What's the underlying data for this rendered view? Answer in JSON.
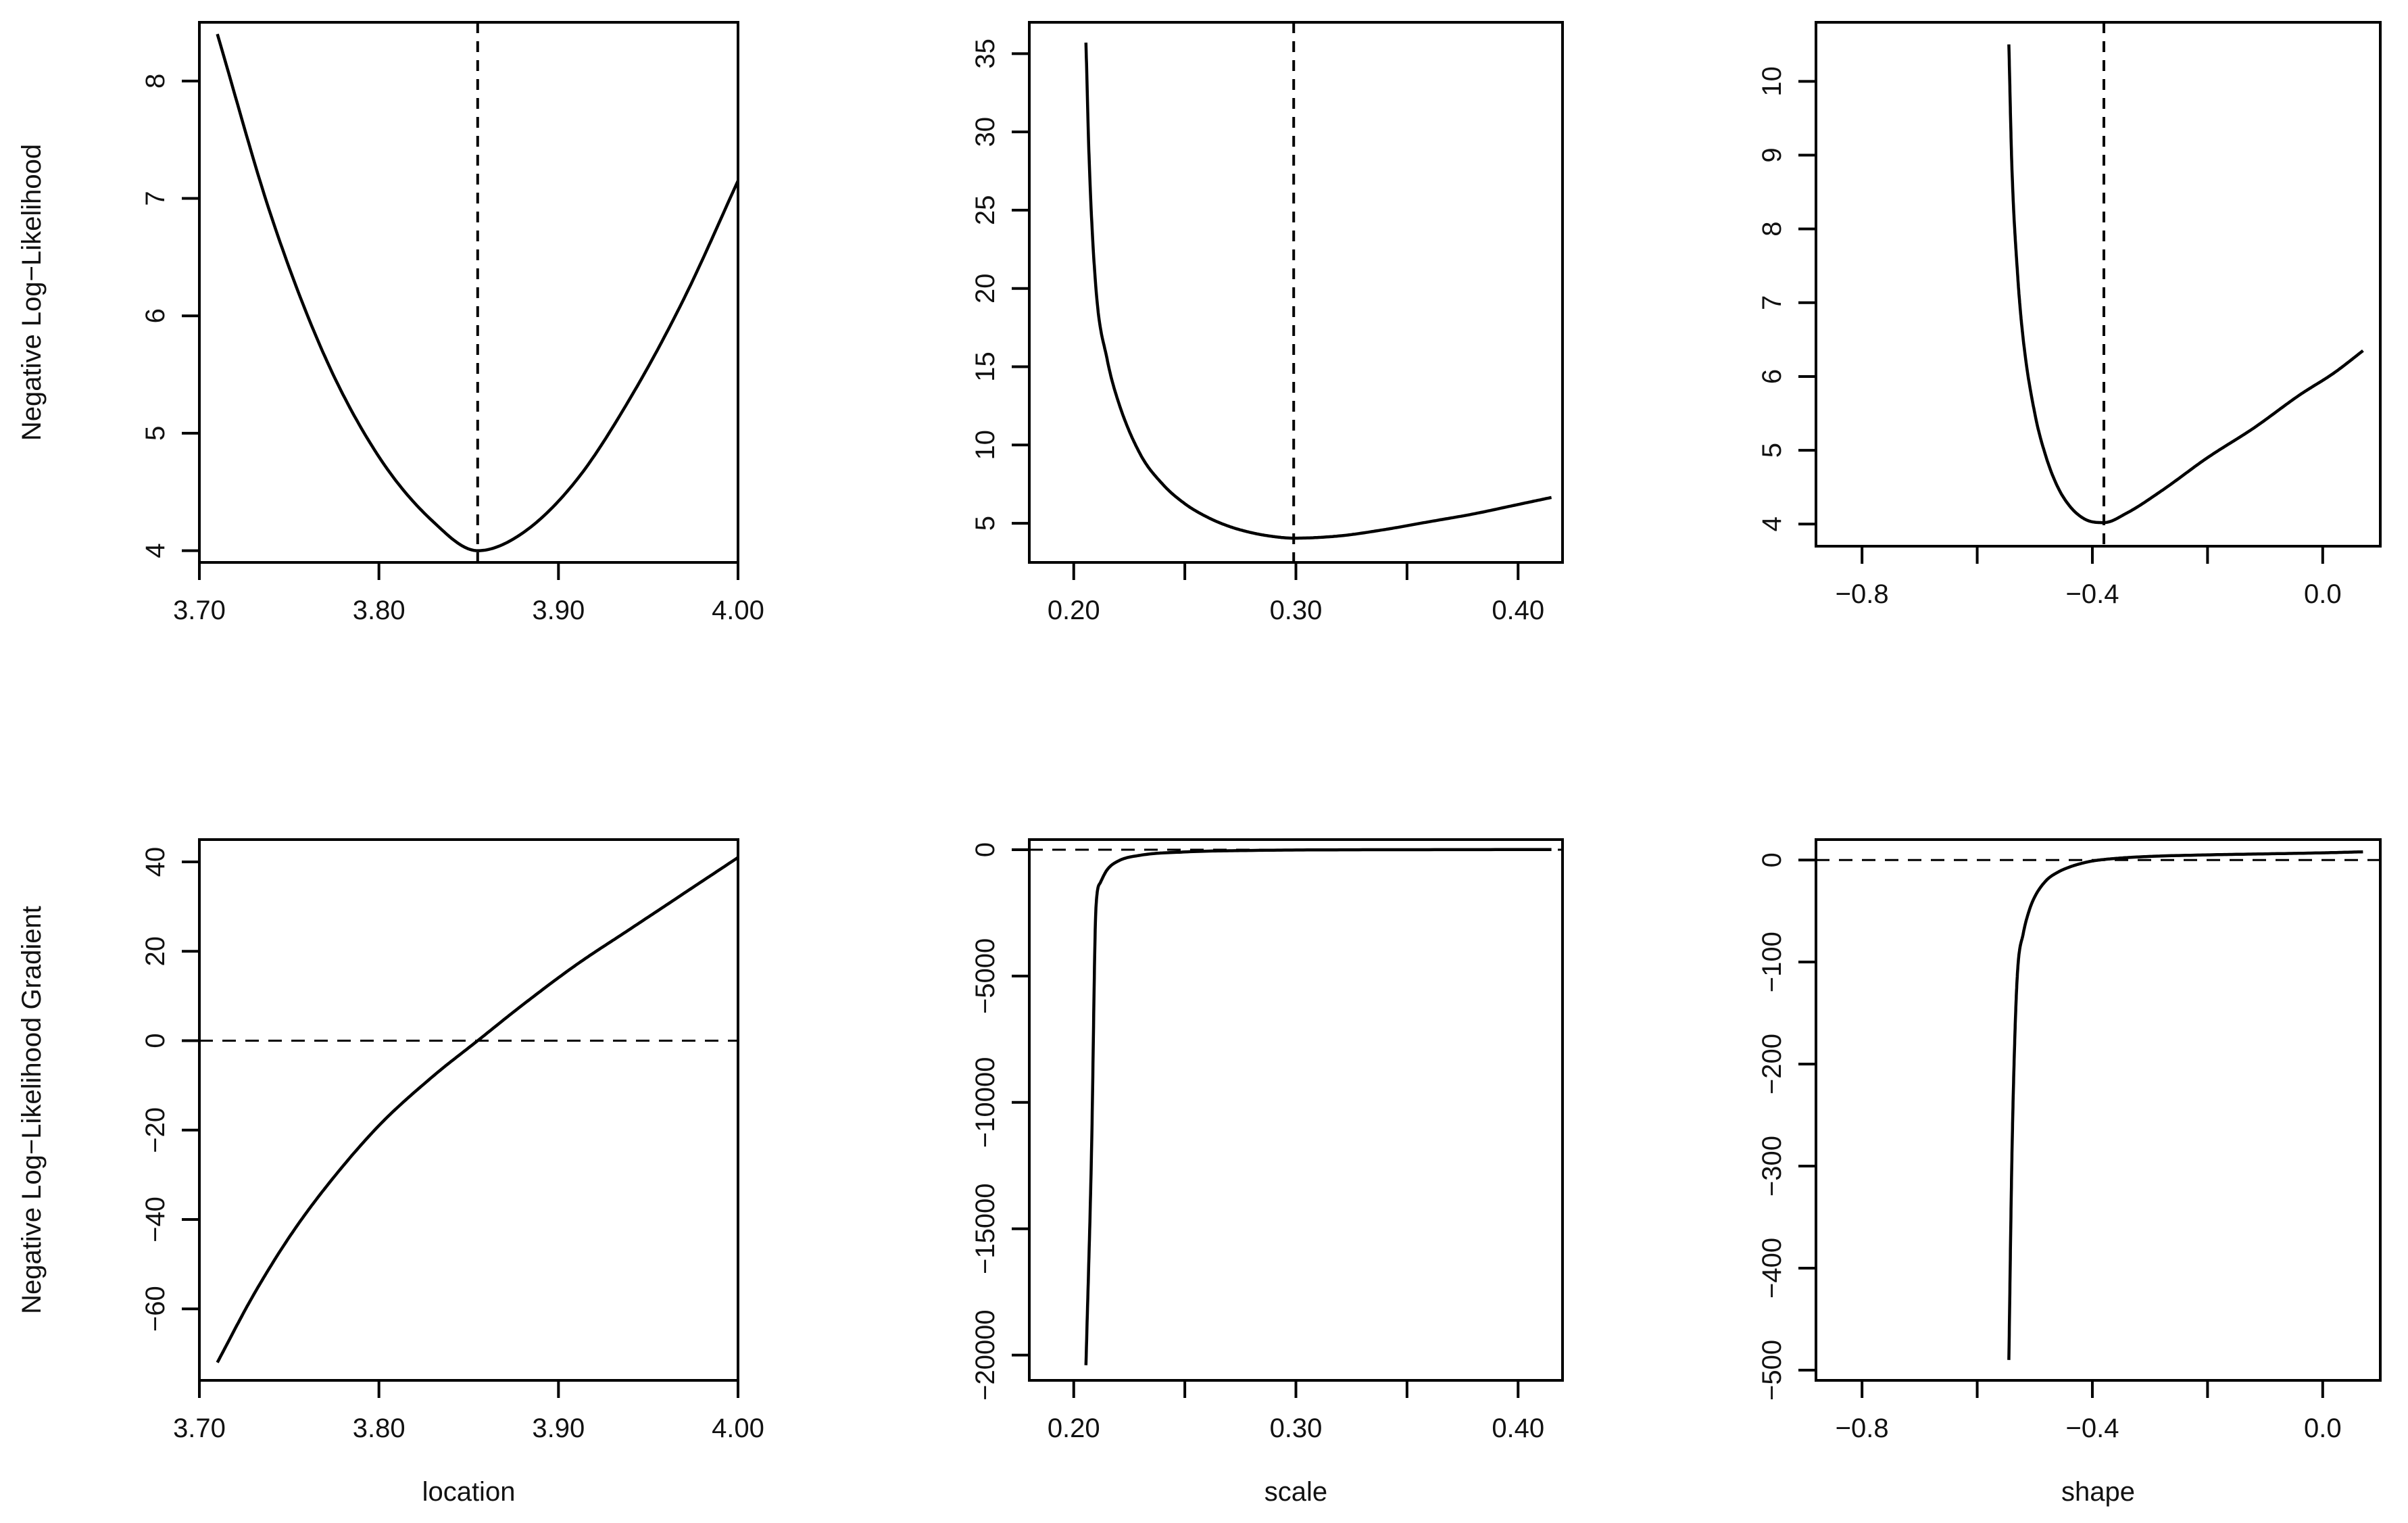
{
  "chart_data": [
    {
      "type": "line",
      "xlabel": "",
      "ylabel": "Negative Log−Likelihood",
      "xlim": [
        3.7,
        4.0
      ],
      "ylim": [
        3.9,
        8.5
      ],
      "xticks": [
        3.7,
        3.8,
        3.9,
        4.0
      ],
      "xtick_labels": [
        "3.70",
        "3.80",
        "3.90",
        "4.00"
      ],
      "yticks": [
        4,
        5,
        6,
        7,
        8
      ],
      "ytick_labels": [
        "4",
        "5",
        "6",
        "7",
        "8"
      ],
      "vline": 3.855,
      "hline": null,
      "series": [
        {
          "x": [
            3.71,
            3.74,
            3.77,
            3.8,
            3.83,
            3.855,
            3.88,
            3.91,
            3.94,
            3.97,
            4.0
          ],
          "y": [
            8.4,
            6.85,
            5.65,
            4.8,
            4.25,
            4.0,
            4.15,
            4.6,
            5.3,
            6.15,
            7.15
          ]
        }
      ]
    },
    {
      "type": "line",
      "xlabel": "",
      "ylabel": "",
      "xlim": [
        0.18,
        0.42
      ],
      "ylim": [
        2.5,
        37
      ],
      "xticks": [
        0.2,
        0.25,
        0.3,
        0.35,
        0.4
      ],
      "xtick_labels": [
        "0.20",
        "",
        "0.30",
        "",
        "0.40"
      ],
      "yticks": [
        5,
        10,
        15,
        20,
        25,
        30,
        35
      ],
      "ytick_labels": [
        "5",
        "10",
        "15",
        "20",
        "25",
        "30",
        "35"
      ],
      "vline": 0.299,
      "hline": null,
      "series": [
        {
          "x": [
            0.2055,
            0.207,
            0.21,
            0.215,
            0.22,
            0.23,
            0.24,
            0.25,
            0.26,
            0.27,
            0.28,
            0.29,
            0.299,
            0.32,
            0.34,
            0.36,
            0.38,
            0.4,
            0.415
          ],
          "y": [
            35.7,
            28.0,
            20.0,
            15.5,
            12.8,
            9.4,
            7.5,
            6.25,
            5.4,
            4.8,
            4.4,
            4.15,
            4.05,
            4.2,
            4.6,
            5.1,
            5.6,
            6.2,
            6.65
          ]
        }
      ]
    },
    {
      "type": "line",
      "xlabel": "",
      "ylabel": "",
      "xlim": [
        -0.88,
        0.1
      ],
      "ylim": [
        3.7,
        10.8
      ],
      "xticks": [
        -0.8,
        -0.6,
        -0.4,
        -0.2,
        0.0
      ],
      "xtick_labels": [
        "−0.8",
        "",
        "−0.4",
        "",
        "0.0"
      ],
      "yticks": [
        4,
        5,
        6,
        7,
        8,
        9,
        10
      ],
      "ytick_labels": [
        "4",
        "5",
        "6",
        "7",
        "8",
        "9",
        "10"
      ],
      "vline": -0.38,
      "hline": null,
      "series": [
        {
          "x": [
            -0.545,
            -0.54,
            -0.53,
            -0.52,
            -0.5,
            -0.48,
            -0.46,
            -0.44,
            -0.42,
            -0.4,
            -0.38,
            -0.34,
            -0.28,
            -0.2,
            -0.12,
            -0.04,
            0.02,
            0.07
          ],
          "y": [
            10.5,
            8.9,
            7.4,
            6.5,
            5.5,
            4.9,
            4.5,
            4.25,
            4.1,
            4.03,
            4.02,
            4.15,
            4.45,
            4.9,
            5.3,
            5.75,
            6.05,
            6.35
          ]
        }
      ]
    },
    {
      "type": "line",
      "xlabel": "location",
      "ylabel": "Negative Log−Likelihood Gradient",
      "xlim": [
        3.7,
        4.0
      ],
      "ylim": [
        -76,
        45
      ],
      "xticks": [
        3.7,
        3.8,
        3.9,
        4.0
      ],
      "xtick_labels": [
        "3.70",
        "3.80",
        "3.90",
        "4.00"
      ],
      "yticks": [
        -60,
        -40,
        -20,
        0,
        20,
        40
      ],
      "ytick_labels": [
        "−60",
        "−40",
        "−20",
        "0",
        "20",
        "40"
      ],
      "vline": null,
      "hline": 0,
      "series": [
        {
          "x": [
            3.71,
            3.73,
            3.75,
            3.77,
            3.8,
            3.83,
            3.855,
            3.88,
            3.91,
            3.94,
            3.97,
            4.0
          ],
          "y": [
            -72,
            -57,
            -44,
            -33,
            -19,
            -8,
            0,
            8,
            17,
            25,
            33,
            41
          ]
        }
      ]
    },
    {
      "type": "line",
      "xlabel": "scale",
      "ylabel": "",
      "xlim": [
        0.18,
        0.42
      ],
      "ylim": [
        -21000,
        400
      ],
      "xticks": [
        0.2,
        0.25,
        0.3,
        0.35,
        0.4
      ],
      "xtick_labels": [
        "0.20",
        "",
        "0.30",
        "",
        "0.40"
      ],
      "yticks": [
        -20000,
        -15000,
        -10000,
        -5000,
        0
      ],
      "ytick_labels": [
        "−20000",
        "−15000",
        "−10000",
        "−5000",
        "0"
      ],
      "vline": null,
      "hline": 0,
      "series": [
        {
          "x": [
            0.2055,
            0.208,
            0.21,
            0.212,
            0.215,
            0.22,
            0.23,
            0.25,
            0.28,
            0.32,
            0.36,
            0.415
          ],
          "y": [
            -20400,
            -12000,
            -2300,
            -1300,
            -800,
            -450,
            -220,
            -90,
            -30,
            -5,
            0,
            5
          ]
        }
      ]
    },
    {
      "type": "line",
      "xlabel": "shape",
      "ylabel": "",
      "xlim": [
        -0.88,
        0.1
      ],
      "ylim": [
        -510,
        20
      ],
      "xticks": [
        -0.8,
        -0.6,
        -0.4,
        -0.2,
        0.0
      ],
      "xtick_labels": [
        "−0.8",
        "",
        "−0.4",
        "",
        "0.0"
      ],
      "yticks": [
        -500,
        -400,
        -300,
        -200,
        -100,
        0
      ],
      "ytick_labels": [
        "−500",
        "−400",
        "−300",
        "−200",
        "−100",
        "0"
      ],
      "vline": null,
      "hline": 0,
      "series": [
        {
          "x": [
            -0.545,
            -0.54,
            -0.535,
            -0.53,
            -0.52,
            -0.51,
            -0.5,
            -0.48,
            -0.46,
            -0.44,
            -0.42,
            -0.4,
            -0.36,
            -0.3,
            -0.2,
            -0.1,
            0.0,
            0.07
          ],
          "y": [
            -490,
            -300,
            -180,
            -110,
            -72,
            -50,
            -36,
            -20,
            -12,
            -7,
            -3.5,
            -1,
            1.5,
            3.5,
            5,
            6,
            7,
            8
          ]
        }
      ]
    }
  ]
}
